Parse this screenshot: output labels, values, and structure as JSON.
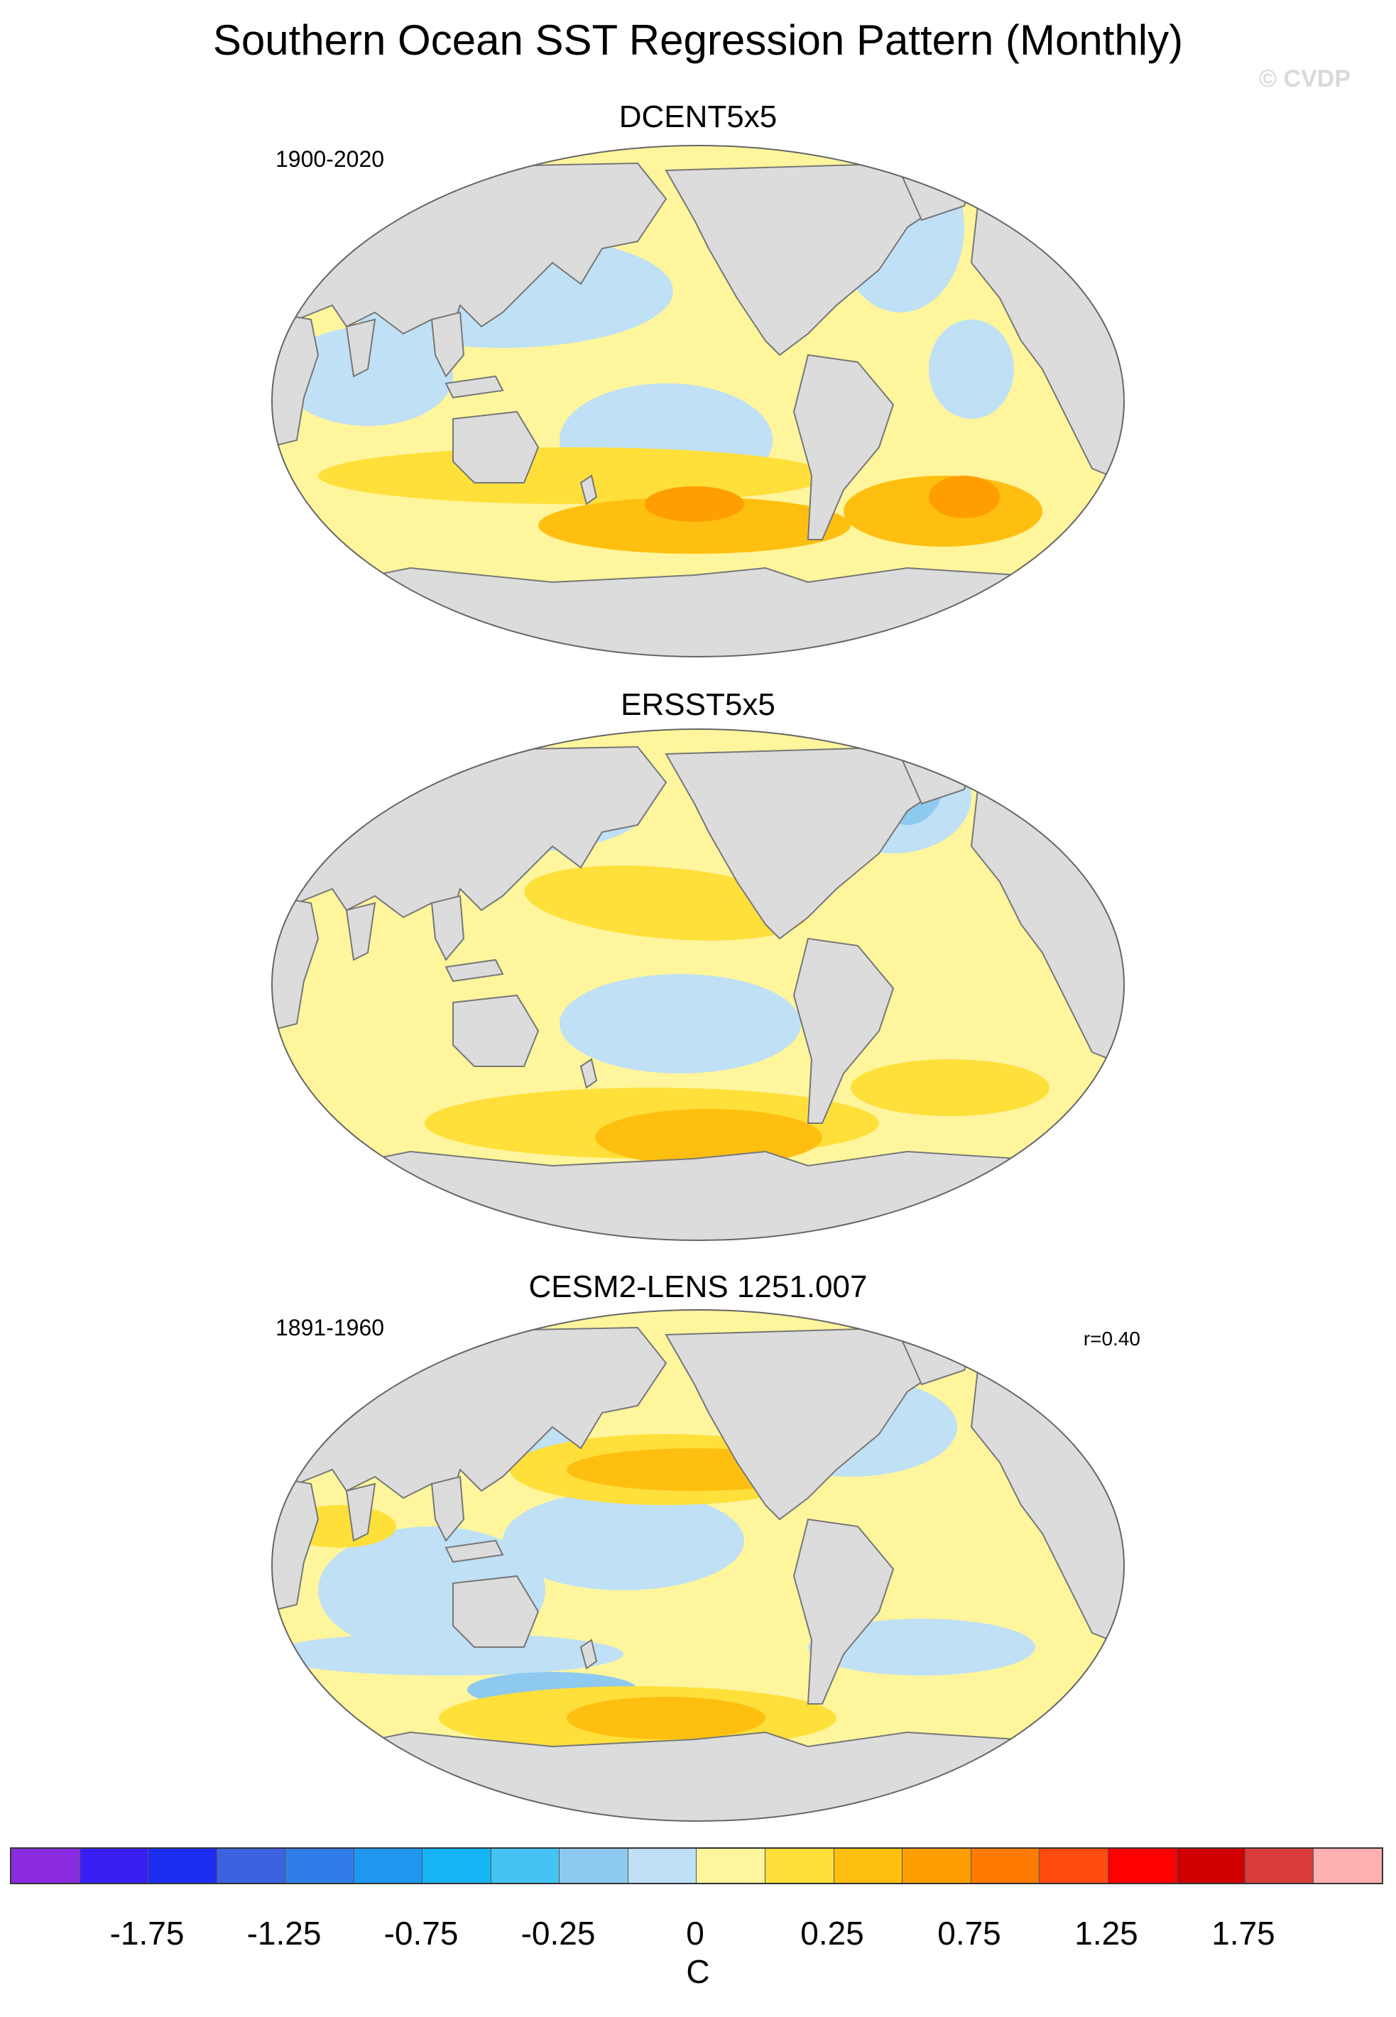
{
  "title": "Southern Ocean SST Regression Pattern (Monthly)",
  "watermark": "© CVDP",
  "panels": [
    {
      "title": "DCENT5x5",
      "left_note": "1900-2020",
      "right_note": ""
    },
    {
      "title": "ERSST5x5",
      "left_note": "",
      "right_note": ""
    },
    {
      "title": "CESM2-LENS 1251.007",
      "left_note": "1891-1960",
      "right_note": "r=0.40"
    }
  ],
  "colors": {
    "land": "#dcdcdc",
    "coast": "#777777",
    "ocean_positive_weak": "#fff59d",
    "ocean_positive_mid": "#ffdf3a",
    "ocean_positive_strong": "#ffbf10",
    "ocean_positive_max": "#ff9e00",
    "ocean_negative_weak": "#bfe0f5",
    "ocean_negative_mid": "#8ec9ef",
    "ocean_negative_strong": "#3b9be8"
  },
  "chart_data": {
    "type": "heatmap",
    "projection": "Winkel Tripel (global map)",
    "variable": "SST regression",
    "colorbar": {
      "unit": "C",
      "levels": [
        -2.25,
        -2.0,
        -1.75,
        -1.5,
        -1.25,
        -1.0,
        -0.75,
        -0.5,
        -0.25,
        -0.125,
        0,
        0.125,
        0.25,
        0.5,
        0.75,
        1.0,
        1.25,
        1.5,
        1.75,
        2.0,
        2.25
      ],
      "colors": [
        "#8a2be2",
        "#3a1ff5",
        "#1c2ef0",
        "#3d62e0",
        "#2f7de8",
        "#1f96f0",
        "#14b4f5",
        "#45c3f4",
        "#8ec9ef",
        "#bfe0f5",
        "#fff59d",
        "#ffdf3a",
        "#ffbf10",
        "#ff9e00",
        "#ff7a00",
        "#ff4a10",
        "#ff0000",
        "#d00000",
        "#d93a3a",
        "#ffb0b0"
      ],
      "tick_labels": [
        "-1.75",
        "-1.25",
        "-0.75",
        "-0.25",
        "0",
        "0.25",
        "0.75",
        "1.25",
        "1.75"
      ],
      "tick_values": [
        -1.75,
        -1.25,
        -0.75,
        -0.25,
        0,
        0.25,
        0.75,
        1.25,
        1.75
      ]
    }
  }
}
